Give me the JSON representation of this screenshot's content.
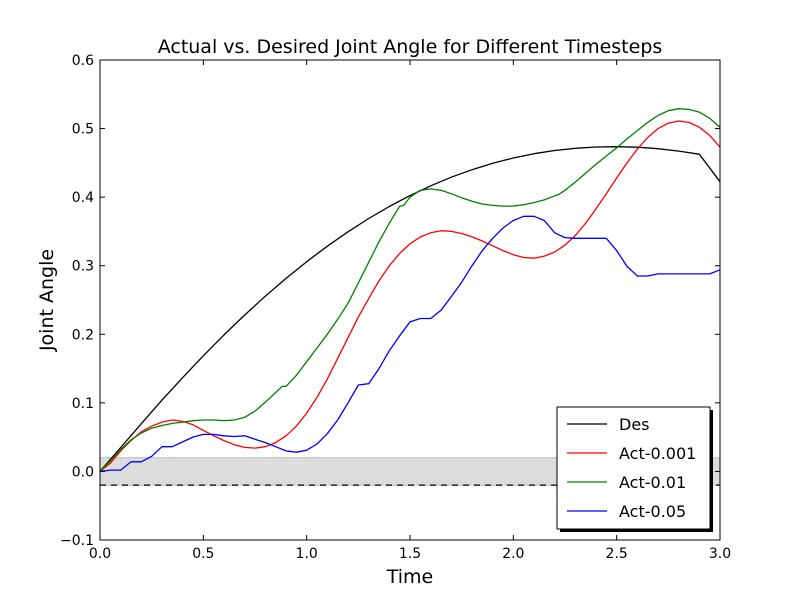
{
  "chart_data": {
    "type": "line",
    "title": "Actual vs. Desired Joint Angle for Different Timesteps",
    "xlabel": "Time",
    "ylabel": "Joint Angle",
    "xlim": [
      0.0,
      3.0
    ],
    "ylim": [
      -0.1,
      0.6
    ],
    "xticks": [
      "0.0",
      "0.5",
      "1.0",
      "1.5",
      "2.0",
      "2.5",
      "3.0"
    ],
    "xtick_values": [
      0.0,
      0.5,
      1.0,
      1.5,
      2.0,
      2.5,
      3.0
    ],
    "yticks": [
      "−0.1",
      "0.0",
      "0.1",
      "0.2",
      "0.3",
      "0.4",
      "0.5",
      "0.6"
    ],
    "ytick_values": [
      -0.1,
      0.0,
      0.1,
      0.2,
      0.3,
      0.4,
      0.5,
      0.6
    ],
    "grid": false,
    "legend_position": "bottom-right",
    "band": {
      "y_low": -0.02,
      "y_high": 0.02,
      "color": "#dcdcdc",
      "dashed_line_y": -0.02
    },
    "series": [
      {
        "name": "Des",
        "color": "#000000",
        "points": [
          [
            0.0,
            0.0
          ],
          [
            0.1,
            0.0349
          ],
          [
            0.2,
            0.0696
          ],
          [
            0.3,
            0.104
          ],
          [
            0.4,
            0.1368
          ],
          [
            0.5,
            0.1686
          ],
          [
            0.6,
            0.1991
          ],
          [
            0.7,
            0.2281
          ],
          [
            0.8,
            0.2556
          ],
          [
            0.9,
            0.2815
          ],
          [
            1.0,
            0.3058
          ],
          [
            1.1,
            0.3285
          ],
          [
            1.2,
            0.3495
          ],
          [
            1.3,
            0.3688
          ],
          [
            1.4,
            0.3864
          ],
          [
            1.5,
            0.4023
          ],
          [
            1.6,
            0.4165
          ],
          [
            1.7,
            0.4291
          ],
          [
            1.8,
            0.44
          ],
          [
            1.9,
            0.4493
          ],
          [
            2.0,
            0.4571
          ],
          [
            2.1,
            0.4633
          ],
          [
            2.2,
            0.468
          ],
          [
            2.3,
            0.4713
          ],
          [
            2.4,
            0.4731
          ],
          [
            2.5,
            0.4736
          ],
          [
            2.6,
            0.4728
          ],
          [
            2.7,
            0.4706
          ],
          [
            2.8,
            0.4672
          ],
          [
            2.9,
            0.4626
          ],
          [
            3.0,
            0.4225
          ]
        ]
      },
      {
        "name": "Act-0.001",
        "color": "#ff0000",
        "points": [
          [
            0.0,
            0.0
          ],
          [
            0.05,
            0.012
          ],
          [
            0.1,
            0.03
          ],
          [
            0.15,
            0.045
          ],
          [
            0.2,
            0.058
          ],
          [
            0.25,
            0.066
          ],
          [
            0.3,
            0.072
          ],
          [
            0.35,
            0.075
          ],
          [
            0.4,
            0.073
          ],
          [
            0.45,
            0.068
          ],
          [
            0.5,
            0.06
          ],
          [
            0.55,
            0.052
          ],
          [
            0.6,
            0.045
          ],
          [
            0.65,
            0.039
          ],
          [
            0.7,
            0.035
          ],
          [
            0.75,
            0.034
          ],
          [
            0.8,
            0.036
          ],
          [
            0.85,
            0.042
          ],
          [
            0.9,
            0.052
          ],
          [
            0.95,
            0.066
          ],
          [
            1.0,
            0.085
          ],
          [
            1.05,
            0.108
          ],
          [
            1.1,
            0.135
          ],
          [
            1.15,
            0.165
          ],
          [
            1.2,
            0.195
          ],
          [
            1.25,
            0.225
          ],
          [
            1.3,
            0.252
          ],
          [
            1.35,
            0.278
          ],
          [
            1.4,
            0.3
          ],
          [
            1.45,
            0.318
          ],
          [
            1.5,
            0.332
          ],
          [
            1.55,
            0.342
          ],
          [
            1.6,
            0.348
          ],
          [
            1.65,
            0.351
          ],
          [
            1.7,
            0.35
          ],
          [
            1.75,
            0.347
          ],
          [
            1.8,
            0.342
          ],
          [
            1.85,
            0.336
          ],
          [
            1.9,
            0.329
          ],
          [
            1.95,
            0.322
          ],
          [
            2.0,
            0.316
          ],
          [
            2.05,
            0.312
          ],
          [
            2.1,
            0.311
          ],
          [
            2.15,
            0.314
          ],
          [
            2.2,
            0.32
          ],
          [
            2.25,
            0.33
          ],
          [
            2.3,
            0.344
          ],
          [
            2.35,
            0.362
          ],
          [
            2.4,
            0.383
          ],
          [
            2.45,
            0.405
          ],
          [
            2.5,
            0.428
          ],
          [
            2.55,
            0.45
          ],
          [
            2.6,
            0.47
          ],
          [
            2.65,
            0.487
          ],
          [
            2.7,
            0.5
          ],
          [
            2.75,
            0.508
          ],
          [
            2.8,
            0.511
          ],
          [
            2.85,
            0.509
          ],
          [
            2.9,
            0.502
          ],
          [
            2.95,
            0.49
          ],
          [
            3.0,
            0.473
          ]
        ]
      },
      {
        "name": "Act-0.01",
        "color": "#008000",
        "points": [
          [
            0.0,
            0.0
          ],
          [
            0.05,
            0.015
          ],
          [
            0.1,
            0.032
          ],
          [
            0.15,
            0.046
          ],
          [
            0.2,
            0.056
          ],
          [
            0.25,
            0.063
          ],
          [
            0.3,
            0.067
          ],
          [
            0.35,
            0.07
          ],
          [
            0.4,
            0.072
          ],
          [
            0.45,
            0.074
          ],
          [
            0.5,
            0.075
          ],
          [
            0.55,
            0.075
          ],
          [
            0.6,
            0.074
          ],
          [
            0.65,
            0.075
          ],
          [
            0.7,
            0.079
          ],
          [
            0.75,
            0.088
          ],
          [
            0.8,
            0.101
          ],
          [
            0.85,
            0.115
          ],
          [
            0.88,
            0.124
          ],
          [
            0.9,
            0.124
          ],
          [
            0.95,
            0.14
          ],
          [
            1.0,
            0.16
          ],
          [
            1.05,
            0.18
          ],
          [
            1.1,
            0.2
          ],
          [
            1.15,
            0.222
          ],
          [
            1.2,
            0.245
          ],
          [
            1.25,
            0.275
          ],
          [
            1.3,
            0.305
          ],
          [
            1.35,
            0.335
          ],
          [
            1.4,
            0.362
          ],
          [
            1.45,
            0.387
          ],
          [
            1.47,
            0.388
          ],
          [
            1.5,
            0.4
          ],
          [
            1.55,
            0.41
          ],
          [
            1.6,
            0.412
          ],
          [
            1.65,
            0.41
          ],
          [
            1.7,
            0.405
          ],
          [
            1.75,
            0.399
          ],
          [
            1.8,
            0.394
          ],
          [
            1.85,
            0.39
          ],
          [
            1.9,
            0.388
          ],
          [
            1.95,
            0.387
          ],
          [
            2.0,
            0.387
          ],
          [
            2.05,
            0.389
          ],
          [
            2.1,
            0.392
          ],
          [
            2.15,
            0.396
          ],
          [
            2.2,
            0.402
          ],
          [
            2.22,
            0.404
          ],
          [
            2.25,
            0.41
          ],
          [
            2.3,
            0.422
          ],
          [
            2.35,
            0.435
          ],
          [
            2.4,
            0.448
          ],
          [
            2.45,
            0.46
          ],
          [
            2.5,
            0.472
          ],
          [
            2.55,
            0.485
          ],
          [
            2.6,
            0.497
          ],
          [
            2.65,
            0.509
          ],
          [
            2.7,
            0.519
          ],
          [
            2.75,
            0.526
          ],
          [
            2.8,
            0.529
          ],
          [
            2.85,
            0.528
          ],
          [
            2.9,
            0.524
          ],
          [
            2.95,
            0.515
          ],
          [
            3.0,
            0.502
          ]
        ]
      },
      {
        "name": "Act-0.05",
        "color": "#0000ff",
        "points": [
          [
            0.0,
            0.0
          ],
          [
            0.05,
            0.002
          ],
          [
            0.1,
            0.002
          ],
          [
            0.15,
            0.014
          ],
          [
            0.2,
            0.014
          ],
          [
            0.25,
            0.022
          ],
          [
            0.3,
            0.036
          ],
          [
            0.35,
            0.036
          ],
          [
            0.4,
            0.043
          ],
          [
            0.45,
            0.05
          ],
          [
            0.5,
            0.054
          ],
          [
            0.55,
            0.054
          ],
          [
            0.6,
            0.052
          ],
          [
            0.65,
            0.051
          ],
          [
            0.7,
            0.052
          ],
          [
            0.75,
            0.047
          ],
          [
            0.8,
            0.042
          ],
          [
            0.85,
            0.036
          ],
          [
            0.9,
            0.03
          ],
          [
            0.95,
            0.028
          ],
          [
            1.0,
            0.031
          ],
          [
            1.05,
            0.04
          ],
          [
            1.1,
            0.055
          ],
          [
            1.15,
            0.075
          ],
          [
            1.2,
            0.1
          ],
          [
            1.25,
            0.126
          ],
          [
            1.3,
            0.128
          ],
          [
            1.35,
            0.15
          ],
          [
            1.4,
            0.176
          ],
          [
            1.45,
            0.198
          ],
          [
            1.5,
            0.218
          ],
          [
            1.55,
            0.223
          ],
          [
            1.6,
            0.223
          ],
          [
            1.65,
            0.235
          ],
          [
            1.7,
            0.255
          ],
          [
            1.75,
            0.276
          ],
          [
            1.8,
            0.3
          ],
          [
            1.85,
            0.322
          ],
          [
            1.9,
            0.34
          ],
          [
            1.95,
            0.355
          ],
          [
            2.0,
            0.366
          ],
          [
            2.05,
            0.372
          ],
          [
            2.1,
            0.372
          ],
          [
            2.15,
            0.366
          ],
          [
            2.2,
            0.348
          ],
          [
            2.25,
            0.341
          ],
          [
            2.3,
            0.34
          ],
          [
            2.35,
            0.34
          ],
          [
            2.4,
            0.34
          ],
          [
            2.45,
            0.34
          ],
          [
            2.5,
            0.322
          ],
          [
            2.55,
            0.299
          ],
          [
            2.6,
            0.285
          ],
          [
            2.65,
            0.285
          ],
          [
            2.7,
            0.288
          ],
          [
            2.75,
            0.288
          ],
          [
            2.8,
            0.288
          ],
          [
            2.85,
            0.288
          ],
          [
            2.9,
            0.288
          ],
          [
            2.95,
            0.288
          ],
          [
            3.0,
            0.294
          ]
        ]
      }
    ]
  }
}
